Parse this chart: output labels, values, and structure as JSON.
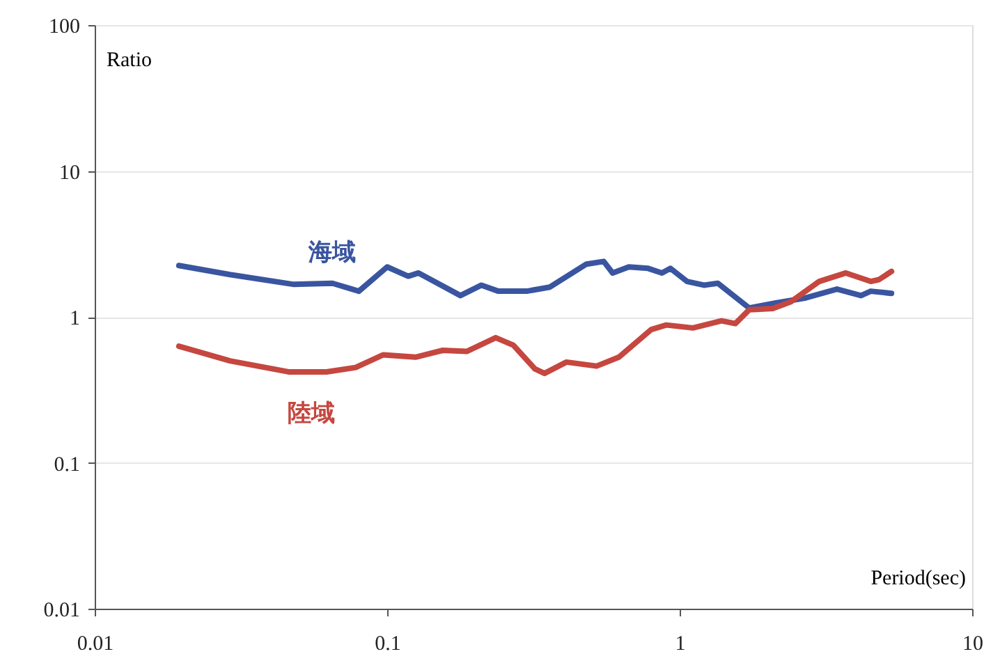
{
  "chart_data": {
    "type": "line",
    "xlabel": "Period(sec)",
    "ylabel": "Ratio",
    "log": "xy",
    "grid": "y",
    "line_style": "solid",
    "marker": "none",
    "xlim": [
      0.01,
      10
    ],
    "xticks": [
      0.01,
      0.1,
      1,
      10
    ],
    "ylim": [
      0.01,
      100
    ],
    "yticks": [
      0.01,
      0.1,
      1,
      10,
      100
    ],
    "series": [
      {
        "name": "海域",
        "color": "#3a55a0",
        "x": [
          0.0194,
          0.029,
          0.048,
          0.065,
          0.08,
          0.1,
          0.118,
          0.128,
          0.178,
          0.21,
          0.24,
          0.3,
          0.36,
          0.48,
          0.55,
          0.59,
          0.67,
          0.78,
          0.87,
          0.93,
          1.06,
          1.21,
          1.35,
          1.73,
          2.15,
          2.7,
          3.45,
          4.17,
          4.5,
          5.3
        ],
        "values": [
          2.25,
          1.95,
          1.67,
          1.7,
          1.5,
          2.2,
          1.9,
          2.0,
          1.4,
          1.65,
          1.5,
          1.5,
          1.6,
          2.3,
          2.4,
          2.0,
          2.2,
          2.15,
          2.0,
          2.15,
          1.75,
          1.65,
          1.7,
          1.15,
          1.25,
          1.35,
          1.55,
          1.4,
          1.5,
          1.45
        ]
      },
      {
        "name": "陸域",
        "color": "#c5473f",
        "x": [
          0.0194,
          0.029,
          0.046,
          0.055,
          0.062,
          0.078,
          0.097,
          0.125,
          0.155,
          0.187,
          0.235,
          0.27,
          0.32,
          0.345,
          0.41,
          0.52,
          0.62,
          0.8,
          0.9,
          1.11,
          1.39,
          1.55,
          1.73,
          2.08,
          2.4,
          3.0,
          3.7,
          4.5,
          4.8,
          5.3
        ],
        "values": [
          0.63,
          0.5,
          0.42,
          0.42,
          0.42,
          0.45,
          0.55,
          0.53,
          0.59,
          0.58,
          0.72,
          0.64,
          0.44,
          0.41,
          0.49,
          0.46,
          0.53,
          0.82,
          0.88,
          0.84,
          0.94,
          0.9,
          1.12,
          1.14,
          1.27,
          1.75,
          2.0,
          1.75,
          1.8,
          2.05
        ]
      }
    ]
  }
}
